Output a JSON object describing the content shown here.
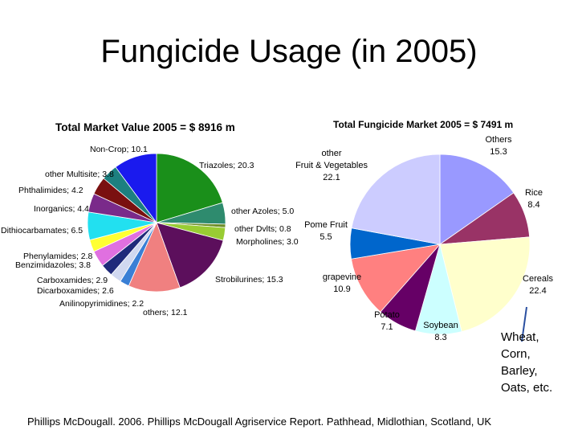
{
  "slide": {
    "title": "Fungicide Usage (in 2005)",
    "annotation": [
      "Wheat,",
      "Corn,",
      "Barley,",
      "Oats, etc."
    ],
    "source": "Phillips McDougall. 2006. Phillips McDougall Agriservice Report. Pathhead, Midlothian, Scotland, UK"
  },
  "chart_data": [
    {
      "type": "pie",
      "title": "Total Market Value 2005 = $ 8916 m",
      "slices": [
        {
          "label": "Triazoles",
          "value": 20.3,
          "text": "Triazoles; 20.3",
          "color": "#1a8f1a"
        },
        {
          "label": "other Azoles",
          "value": 5.0,
          "text": "other Azoles; 5.0",
          "color": "#2e8b6e"
        },
        {
          "label": "other Dvlts",
          "value": 0.8,
          "text": "other Dvlts; 0.8",
          "color": "#6f8f2a"
        },
        {
          "label": "Morpholines",
          "value": 3.0,
          "text": "Morpholines; 3.0",
          "color": "#99cc33"
        },
        {
          "label": "Strobilurines",
          "value": 15.3,
          "text": "Strobilurines; 15.3",
          "color": "#5c0f5c"
        },
        {
          "label": "others",
          "value": 12.1,
          "text": "others; 12.1",
          "color": "#f08080"
        },
        {
          "label": "Anilinopyrimidines",
          "value": 2.2,
          "text": "Anilinopyrimidines; 2.2",
          "color": "#3a7fd5"
        },
        {
          "label": "Dicarboxamides",
          "value": 2.6,
          "text": "Dicarboxamides; 2.6",
          "color": "#d0d8f0"
        },
        {
          "label": "Carboxamides",
          "value": 2.9,
          "text": "Carboxamides; 2.9",
          "color": "#1f2a7a"
        },
        {
          "label": "Benzimidazoles",
          "value": 3.8,
          "text": "Benzimidazoles; 3.8",
          "color": "#e070e0"
        },
        {
          "label": "Phenylamides",
          "value": 2.8,
          "text": "Phenylamides; 2.8",
          "color": "#ffff33"
        },
        {
          "label": "Dithiocarbamates",
          "value": 6.5,
          "text": "Dithiocarbamates; 6.5",
          "color": "#22e0f0"
        },
        {
          "label": "Inorganics",
          "value": 4.4,
          "text": "Inorganics; 4.4",
          "color": "#7a2a8a"
        },
        {
          "label": "Phthalimides",
          "value": 4.2,
          "text": "Phthalimides; 4.2",
          "color": "#7a1010"
        },
        {
          "label": "other Multisite",
          "value": 3.8,
          "text": "other Multisite; 3.8",
          "color": "#1d8080"
        },
        {
          "label": "Non-Crop",
          "value": 10.1,
          "text": "Non-Crop; 10.1",
          "color": "#1a1aee"
        }
      ]
    },
    {
      "type": "pie",
      "title": "Total Fungicide Market 2005 = $ 7491 m",
      "slices": [
        {
          "label": "Others",
          "value": 15.3,
          "text": [
            "Others",
            "15.3"
          ],
          "color": "#9999ff"
        },
        {
          "label": "Rice",
          "value": 8.4,
          "text": [
            "Rice",
            "8.4"
          ],
          "color": "#993366"
        },
        {
          "label": "Cereals",
          "value": 22.4,
          "text": [
            "Cereals",
            "22.4"
          ],
          "color": "#ffffcc"
        },
        {
          "label": "Soybean",
          "value": 8.3,
          "text": [
            "Soybean",
            "8.3"
          ],
          "color": "#ccffff"
        },
        {
          "label": "Potato",
          "value": 7.1,
          "text": [
            "Potato",
            "7.1"
          ],
          "color": "#660066"
        },
        {
          "label": "grapevine",
          "value": 10.9,
          "text": [
            "grapevine",
            "10.9"
          ],
          "color": "#ff8080"
        },
        {
          "label": "Pome Fruit",
          "value": 5.5,
          "text": [
            "Pome Fruit",
            "5.5"
          ],
          "color": "#0066cc"
        },
        {
          "label": "other Fruit & Vegetables",
          "value": 22.1,
          "text": [
            "other",
            "Fruit & Vegetables",
            "22.1"
          ],
          "color": "#ccccff"
        }
      ]
    }
  ]
}
